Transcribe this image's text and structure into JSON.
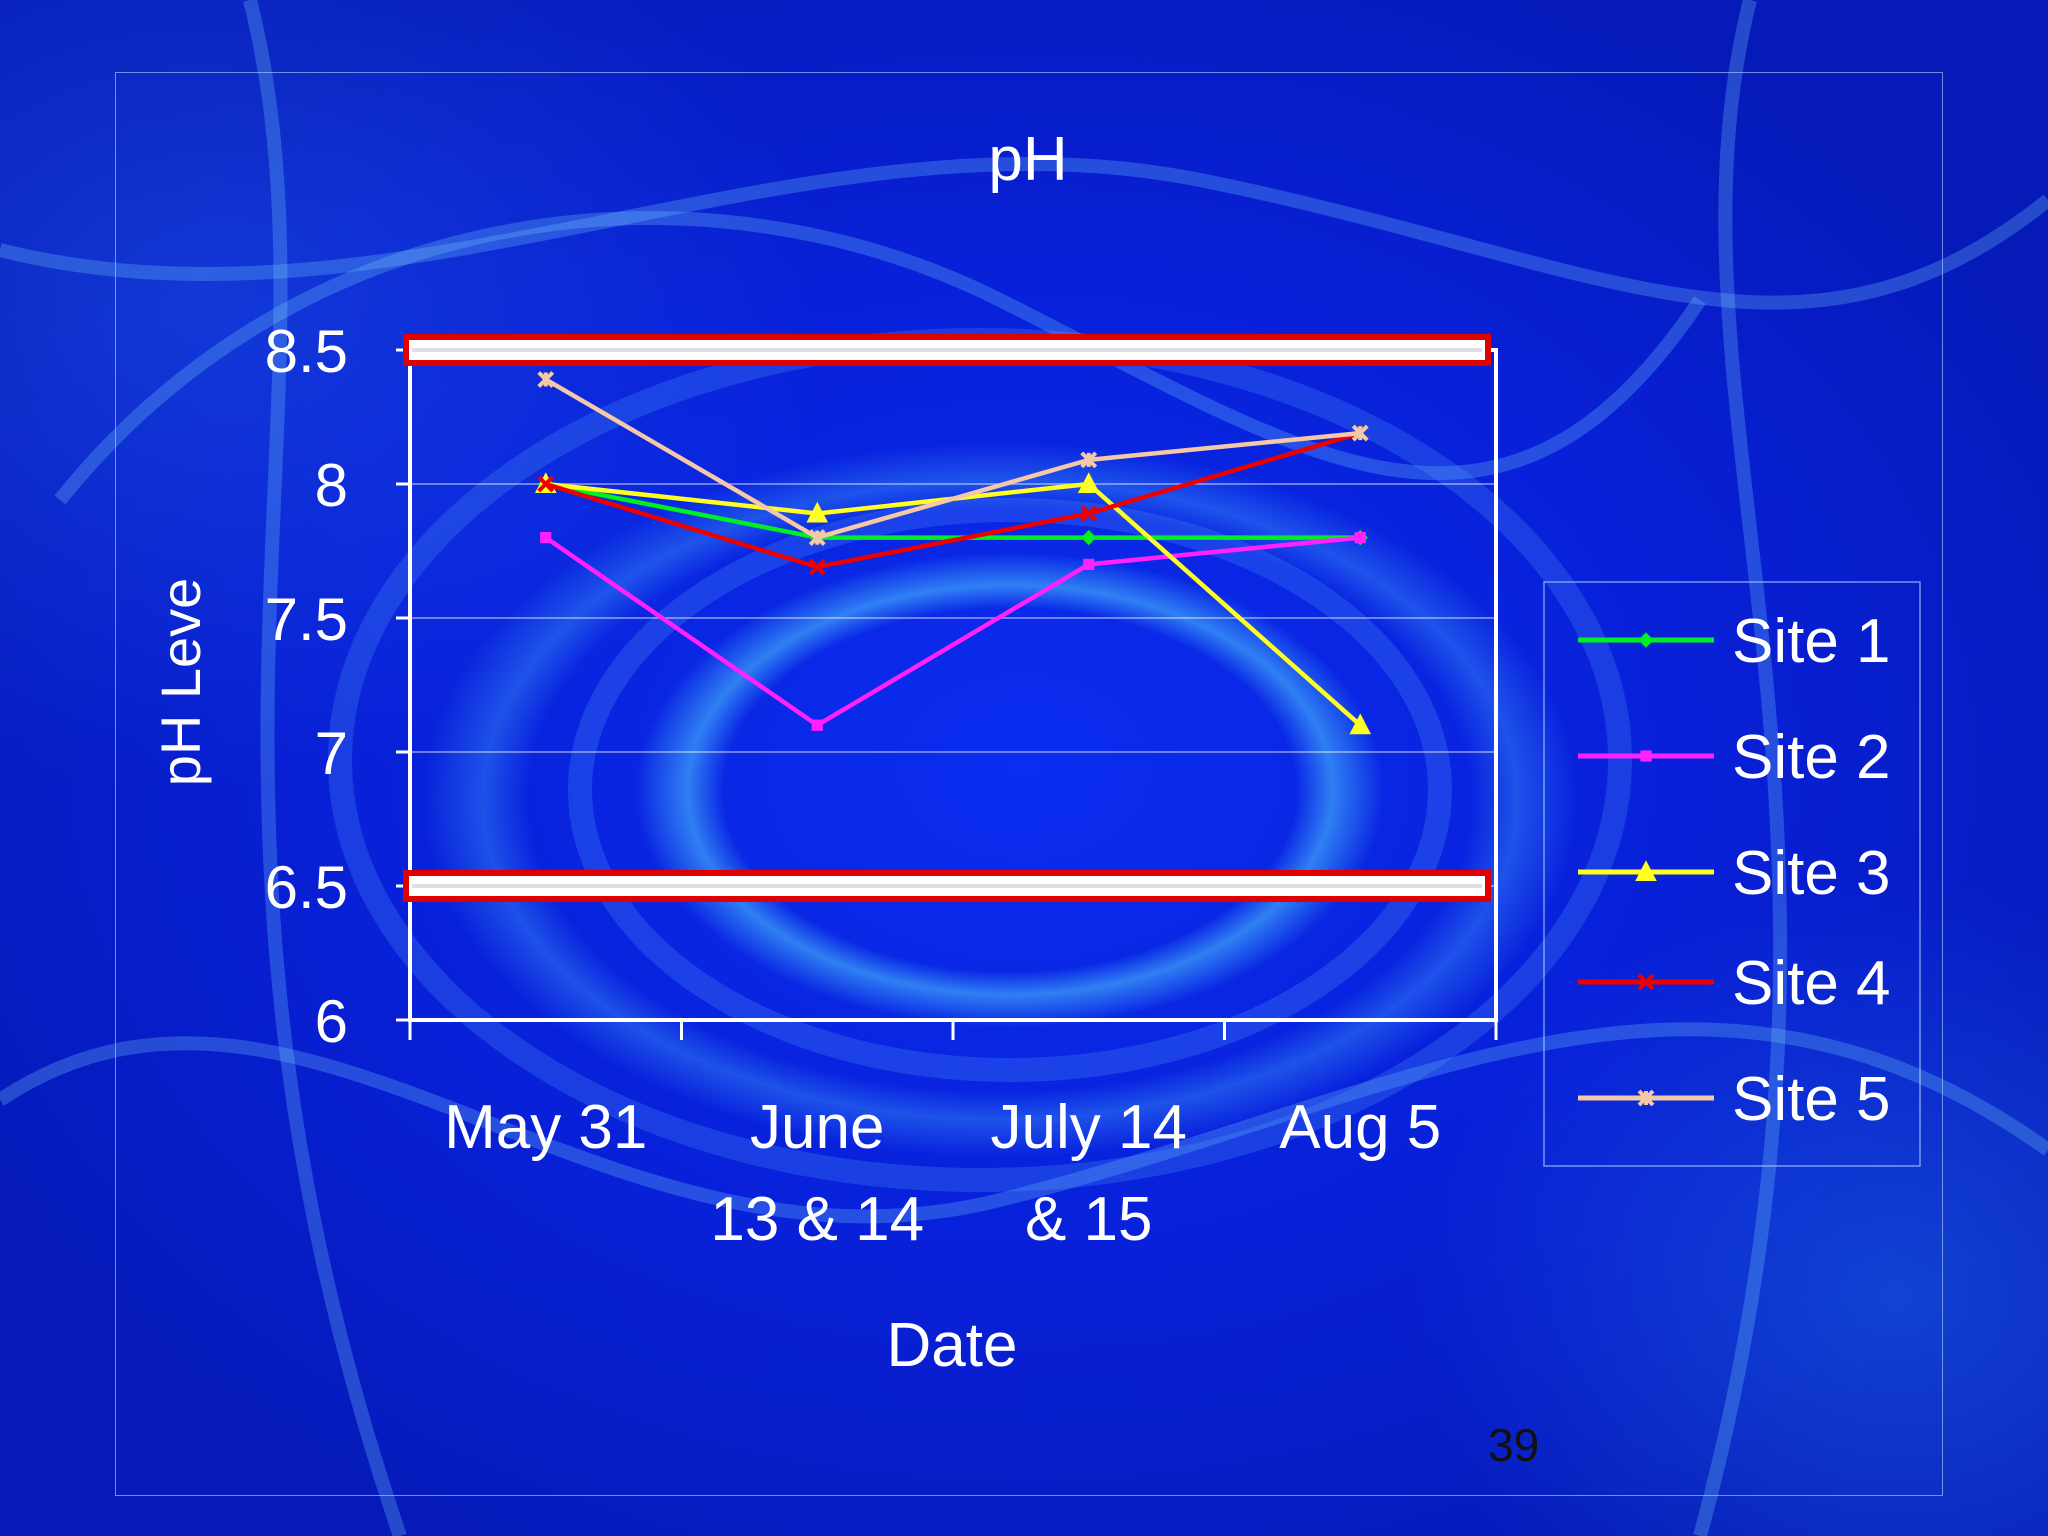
{
  "slide": {
    "page_number": "39"
  },
  "chart_data": {
    "type": "line",
    "title": "pH",
    "xlabel": "Date",
    "ylabel": "pH Leve",
    "categories": [
      [
        "May 31"
      ],
      [
        "June",
        "13 & 14"
      ],
      [
        "July 14",
        "& 15"
      ],
      [
        "Aug 5"
      ]
    ],
    "ylim": [
      6,
      8.5
    ],
    "yticks": [
      "6",
      "6.5",
      "7",
      "7.5",
      "8",
      "8.5"
    ],
    "grid": true,
    "legend_position": "right",
    "series": [
      {
        "name": "Site 1",
        "color": "#00ee22",
        "marker": "diamond",
        "values": [
          8.0,
          7.8,
          7.8,
          7.8
        ]
      },
      {
        "name": "Site 2",
        "color": "#ff22ff",
        "marker": "square",
        "values": [
          7.8,
          7.1,
          7.7,
          7.8
        ]
      },
      {
        "name": "Site 3",
        "color": "#ffff22",
        "marker": "triangle",
        "values": [
          8.0,
          7.89,
          8.0,
          7.1
        ]
      },
      {
        "name": "Site 4",
        "color": "#ee0000",
        "marker": "x",
        "values": [
          8.0,
          7.69,
          7.89,
          8.19
        ]
      },
      {
        "name": "Site 5",
        "color": "#f5c8a8",
        "marker": "star",
        "values": [
          8.39,
          7.8,
          8.09,
          8.19
        ]
      }
    ],
    "reference_lines": [
      8.5,
      6.5
    ]
  }
}
